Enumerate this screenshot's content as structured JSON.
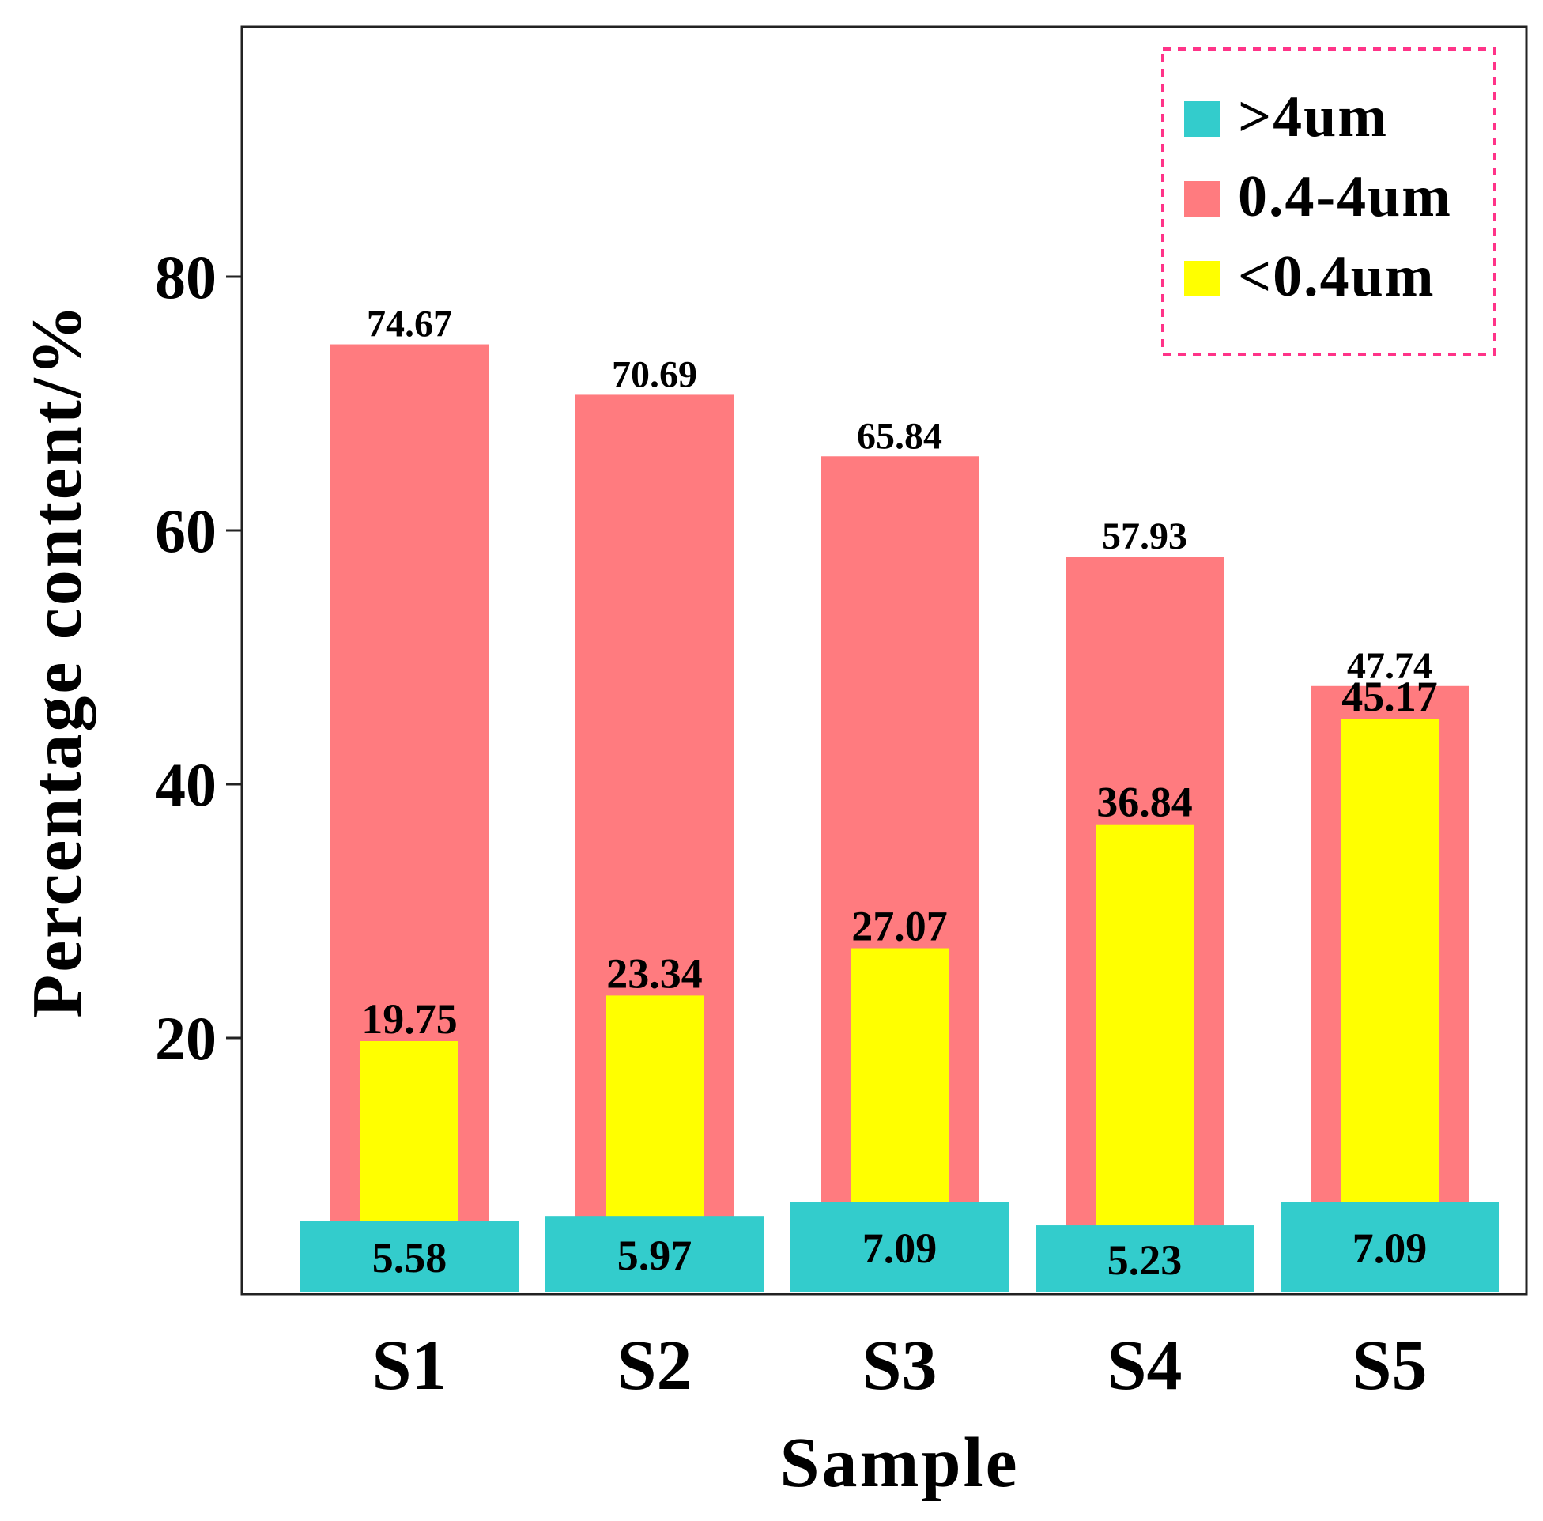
{
  "chart_data": {
    "type": "bar",
    "categories": [
      "S1",
      "S2",
      "S3",
      "S4",
      "S5"
    ],
    "series": [
      {
        "name": ">4um",
        "color": "#33cccc",
        "values": [
          5.58,
          5.97,
          7.09,
          5.23,
          7.09
        ]
      },
      {
        "name": "0.4-4um",
        "color": "#ff7b7f",
        "values": [
          74.67,
          70.69,
          65.84,
          57.93,
          47.74
        ]
      },
      {
        "name": "<0.4um",
        "color": "#ffff00",
        "values": [
          19.75,
          23.34,
          27.07,
          36.84,
          45.17
        ]
      }
    ],
    "labels": {
      ">4um": [
        "5.58",
        "5.97",
        "7.09",
        "5.23",
        "7.09"
      ],
      "0.4-4um": [
        "74.67",
        "70.69",
        "65.84",
        "57.93",
        "47.74"
      ],
      "<0.4um": [
        "19.75",
        "23.34",
        "27.07",
        "36.84",
        "45.17"
      ]
    },
    "title": "",
    "xlabel": "Sample",
    "ylabel": "Percentage content/%",
    "yticks": [
      "20",
      "40",
      "60",
      "80"
    ],
    "ytick_values": [
      20,
      40,
      60,
      80
    ],
    "ylim": [
      0,
      100
    ],
    "legend": {
      "entries": [
        ">4um",
        "0.4-4um",
        "<0.4um"
      ],
      "placement": "top-right",
      "border_color": "#ff3388"
    },
    "grid": false
  }
}
